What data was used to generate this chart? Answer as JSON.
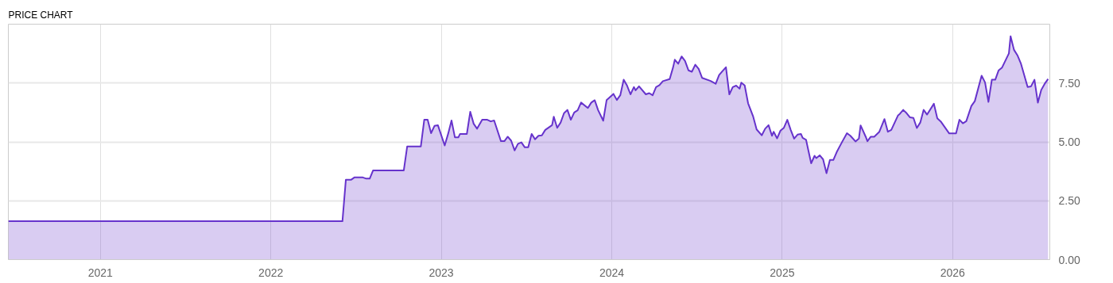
{
  "chart_data": {
    "type": "area",
    "title": "PRICE CHART",
    "xlim": [
      2020.46,
      2026.57
    ],
    "xticks": [
      2021,
      2022,
      2023,
      2024,
      2025,
      2026
    ],
    "ylim": [
      0,
      10
    ],
    "yticks": [
      {
        "value": 0,
        "label": "0.00"
      },
      {
        "value": 2.5,
        "label": "2.50"
      },
      {
        "value": 5,
        "label": "5.00"
      },
      {
        "value": 7.5,
        "label": "7.50"
      }
    ],
    "grid": true,
    "series": [
      {
        "color": "#6633cc",
        "x": [
          2020.46,
          2022.42,
          2022.44,
          2022.47,
          2022.49,
          2022.54,
          2022.56,
          2022.58,
          2022.6,
          2022.78,
          2022.8,
          2022.88,
          2022.9,
          2022.92,
          2022.94,
          2022.96,
          2022.98,
          2023.02,
          2023.04,
          2023.06,
          2023.08,
          2023.1,
          2023.11,
          2023.15,
          2023.17,
          2023.19,
          2023.21,
          2023.24,
          2023.27,
          2023.29,
          2023.31,
          2023.35,
          2023.37,
          2023.39,
          2023.41,
          2023.43,
          2023.45,
          2023.47,
          2023.49,
          2023.51,
          2023.53,
          2023.55,
          2023.57,
          2023.59,
          2023.61,
          2023.65,
          2023.66,
          2023.68,
          2023.7,
          2023.72,
          2023.74,
          2023.76,
          2023.78,
          2023.8,
          2023.82,
          2023.86,
          2023.88,
          2023.9,
          2023.92,
          2023.95,
          2023.97,
          2024.01,
          2024.03,
          2024.05,
          2024.07,
          2024.09,
          2024.11,
          2024.13,
          2024.14,
          2024.16,
          2024.2,
          2024.22,
          2024.24,
          2024.26,
          2024.28,
          2024.3,
          2024.34,
          2024.36,
          2024.37,
          2024.39,
          2024.41,
          2024.43,
          2024.45,
          2024.47,
          2024.49,
          2024.51,
          2024.53,
          2024.58,
          2024.61,
          2024.63,
          2024.65,
          2024.67,
          2024.69,
          2024.71,
          2024.73,
          2024.75,
          2024.76,
          2024.78,
          2024.8,
          2024.83,
          2024.85,
          2024.88,
          2024.9,
          2024.92,
          2024.94,
          2024.95,
          2024.97,
          2024.99,
          2025.01,
          2025.03,
          2025.05,
          2025.07,
          2025.09,
          2025.11,
          2025.12,
          2025.14,
          2025.17,
          2025.19,
          2025.2,
          2025.22,
          2025.24,
          2025.26,
          2025.28,
          2025.3,
          2025.32,
          2025.35,
          2025.38,
          2025.4,
          2025.43,
          2025.45,
          2025.46,
          2025.49,
          2025.5,
          2025.52,
          2025.54,
          2025.57,
          2025.6,
          2025.62,
          2025.64,
          2025.68,
          2025.69,
          2025.71,
          2025.73,
          2025.75,
          2025.77,
          2025.79,
          2025.81,
          2025.83,
          2025.85,
          2025.89,
          2025.91,
          2025.93,
          2025.98,
          2026.02,
          2026.04,
          2026.06,
          2026.08,
          2026.11,
          2026.13,
          2026.17,
          2026.19,
          2026.21,
          2026.23,
          2026.25,
          2026.27,
          2026.29,
          2026.33,
          2026.34,
          2026.36,
          2026.38,
          2026.4,
          2026.44,
          2026.46,
          2026.48,
          2026.5,
          2026.52,
          2026.54,
          2026.56
        ],
        "values": [
          1.63,
          1.63,
          3.39,
          3.39,
          3.49,
          3.49,
          3.44,
          3.44,
          3.79,
          3.79,
          4.81,
          4.81,
          5.94,
          5.94,
          5.37,
          5.68,
          5.71,
          4.85,
          5.34,
          5.91,
          5.19,
          5.19,
          5.34,
          5.34,
          6.28,
          5.77,
          5.56,
          5.94,
          5.94,
          5.87,
          5.91,
          5.03,
          5.03,
          5.22,
          5.05,
          4.64,
          4.92,
          4.98,
          4.77,
          4.77,
          5.34,
          5.11,
          5.26,
          5.28,
          5.51,
          5.71,
          6.07,
          5.6,
          5.82,
          6.22,
          6.36,
          5.94,
          6.25,
          6.34,
          6.67,
          6.44,
          6.67,
          6.77,
          6.35,
          5.9,
          6.78,
          7.04,
          6.78,
          6.98,
          7.64,
          7.39,
          7.02,
          7.33,
          7.19,
          7.36,
          7.02,
          7.07,
          6.98,
          7.33,
          7.41,
          7.58,
          7.67,
          8.17,
          8.49,
          8.32,
          8.63,
          8.44,
          8.04,
          7.98,
          8.28,
          8.1,
          7.72,
          7.59,
          7.47,
          7.84,
          8.01,
          8.17,
          7.02,
          7.33,
          7.39,
          7.26,
          7.52,
          7.4,
          6.64,
          6.07,
          5.53,
          5.28,
          5.56,
          5.71,
          5.26,
          5.43,
          5.15,
          5.48,
          5.6,
          5.94,
          5.51,
          5.14,
          5.31,
          5.34,
          5.17,
          5.09,
          4.09,
          4.41,
          4.31,
          4.43,
          4.26,
          3.67,
          4.23,
          4.23,
          4.57,
          4.98,
          5.37,
          5.26,
          5.02,
          5.14,
          5.7,
          5.22,
          5.03,
          5.22,
          5.22,
          5.43,
          5.97,
          5.43,
          5.51,
          6.13,
          6.19,
          6.36,
          6.22,
          6.04,
          6.02,
          5.59,
          5.82,
          6.36,
          6.16,
          6.62,
          6.0,
          5.87,
          5.36,
          5.36,
          5.94,
          5.79,
          5.88,
          6.53,
          6.73,
          7.81,
          7.53,
          6.7,
          7.64,
          7.64,
          8.04,
          8.16,
          8.76,
          9.49,
          8.91,
          8.68,
          8.34,
          7.33,
          7.36,
          7.64,
          6.67,
          7.21,
          7.47,
          7.67
        ]
      }
    ]
  }
}
